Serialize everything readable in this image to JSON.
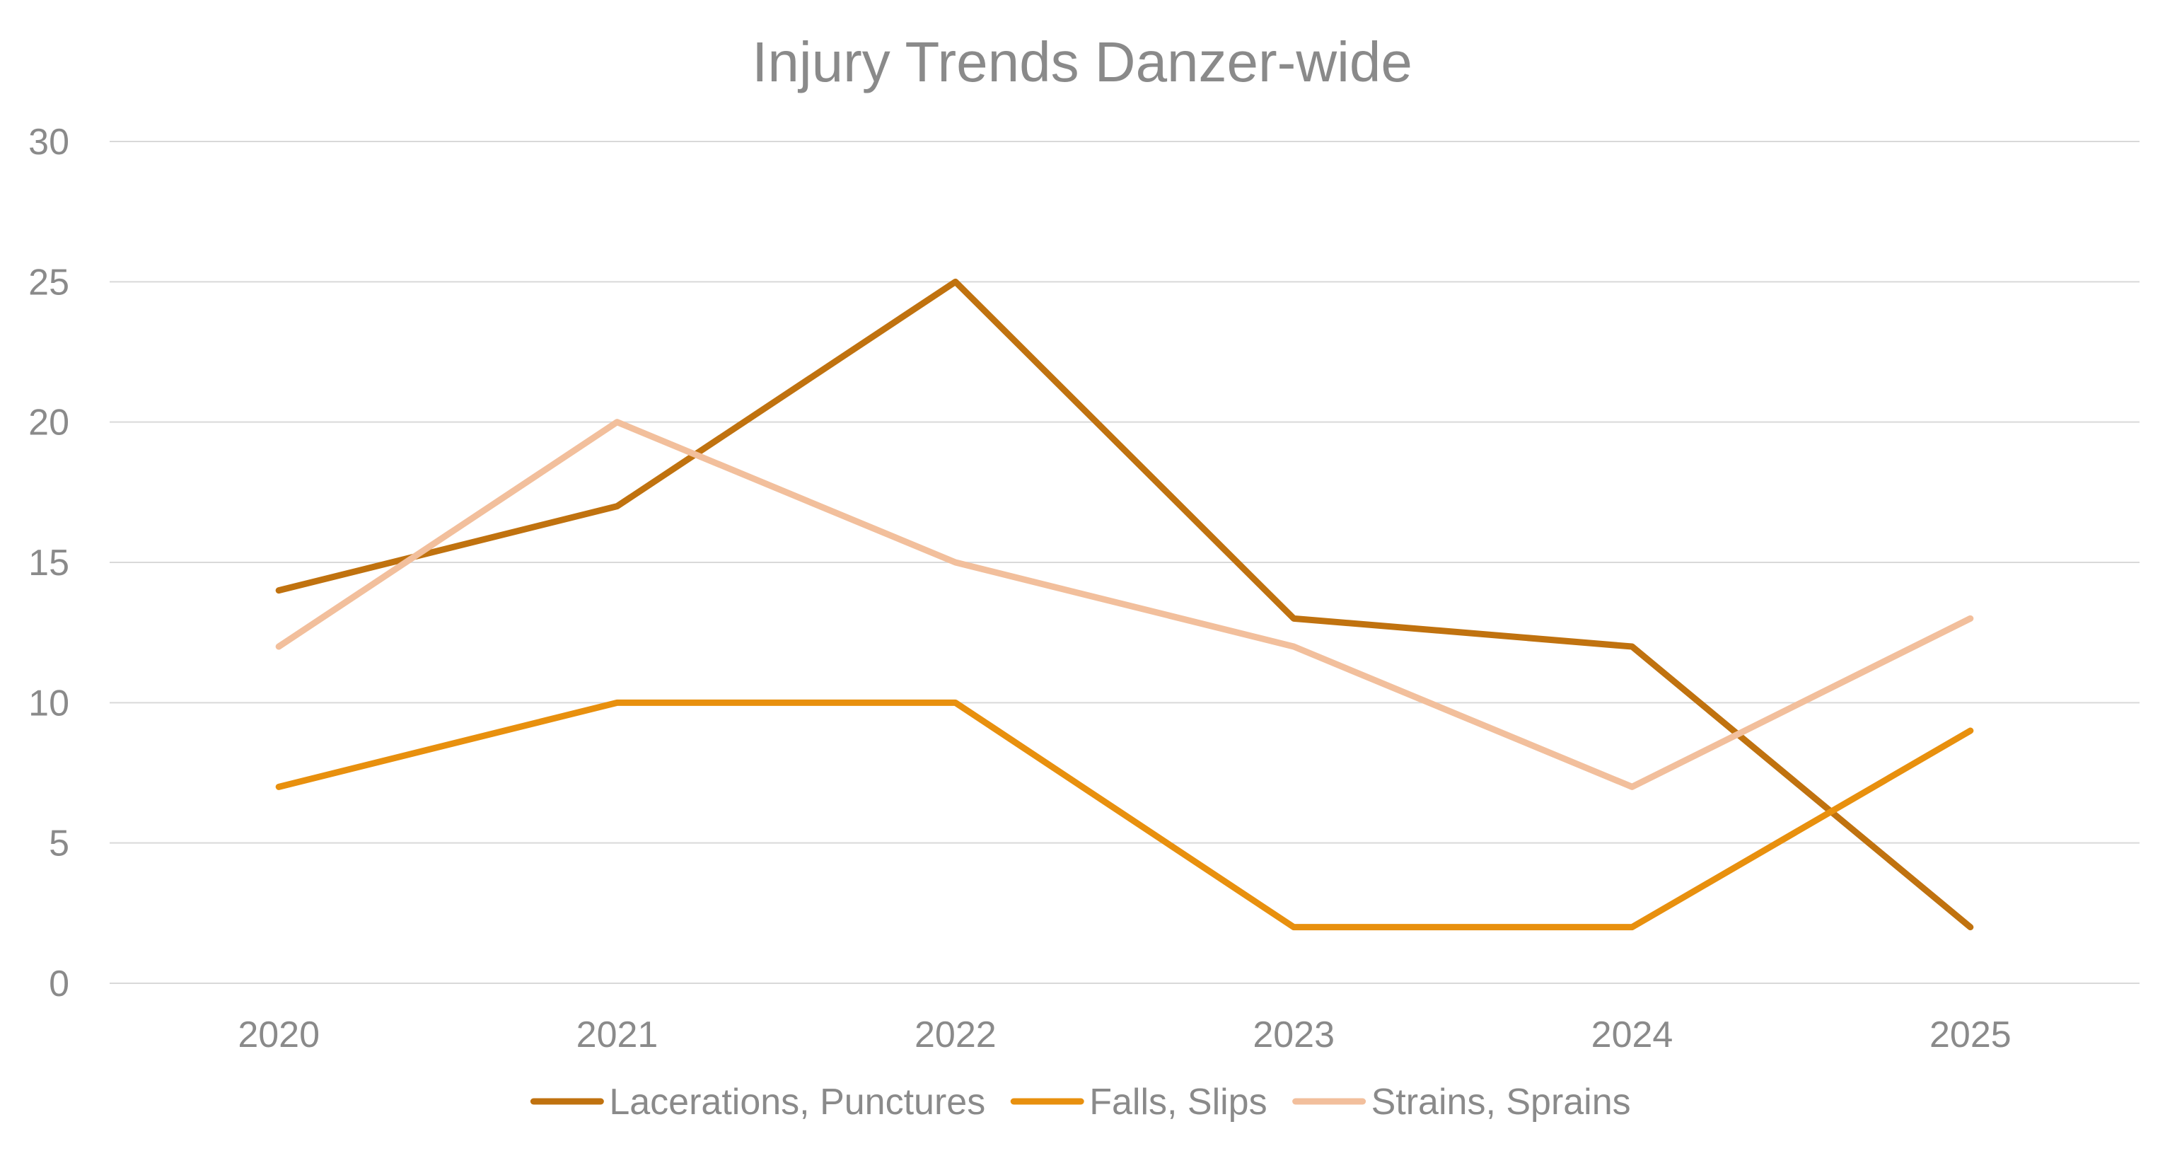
{
  "chart_data": {
    "type": "line",
    "title": "Injury Trends Danzer-wide",
    "xlabel": "",
    "ylabel": "",
    "categories": [
      "2020",
      "2021",
      "2022",
      "2023",
      "2024",
      "2025"
    ],
    "ylim": [
      0,
      30
    ],
    "yticks": [
      "0",
      "5",
      "10",
      "15",
      "20",
      "25",
      "30"
    ],
    "grid": true,
    "legend_position": "bottom",
    "series": [
      {
        "name": "Lacerations, Punctures",
        "color": "#c0720f",
        "values": [
          14,
          17,
          25,
          13,
          12,
          2
        ]
      },
      {
        "name": "Falls, Slips",
        "color": "#e8900e",
        "values": [
          7,
          10,
          10,
          2,
          2,
          9
        ]
      },
      {
        "name": "Strains, Sprains",
        "color": "#f2bf9c",
        "values": [
          12,
          20,
          15,
          12,
          7,
          13
        ]
      }
    ]
  }
}
